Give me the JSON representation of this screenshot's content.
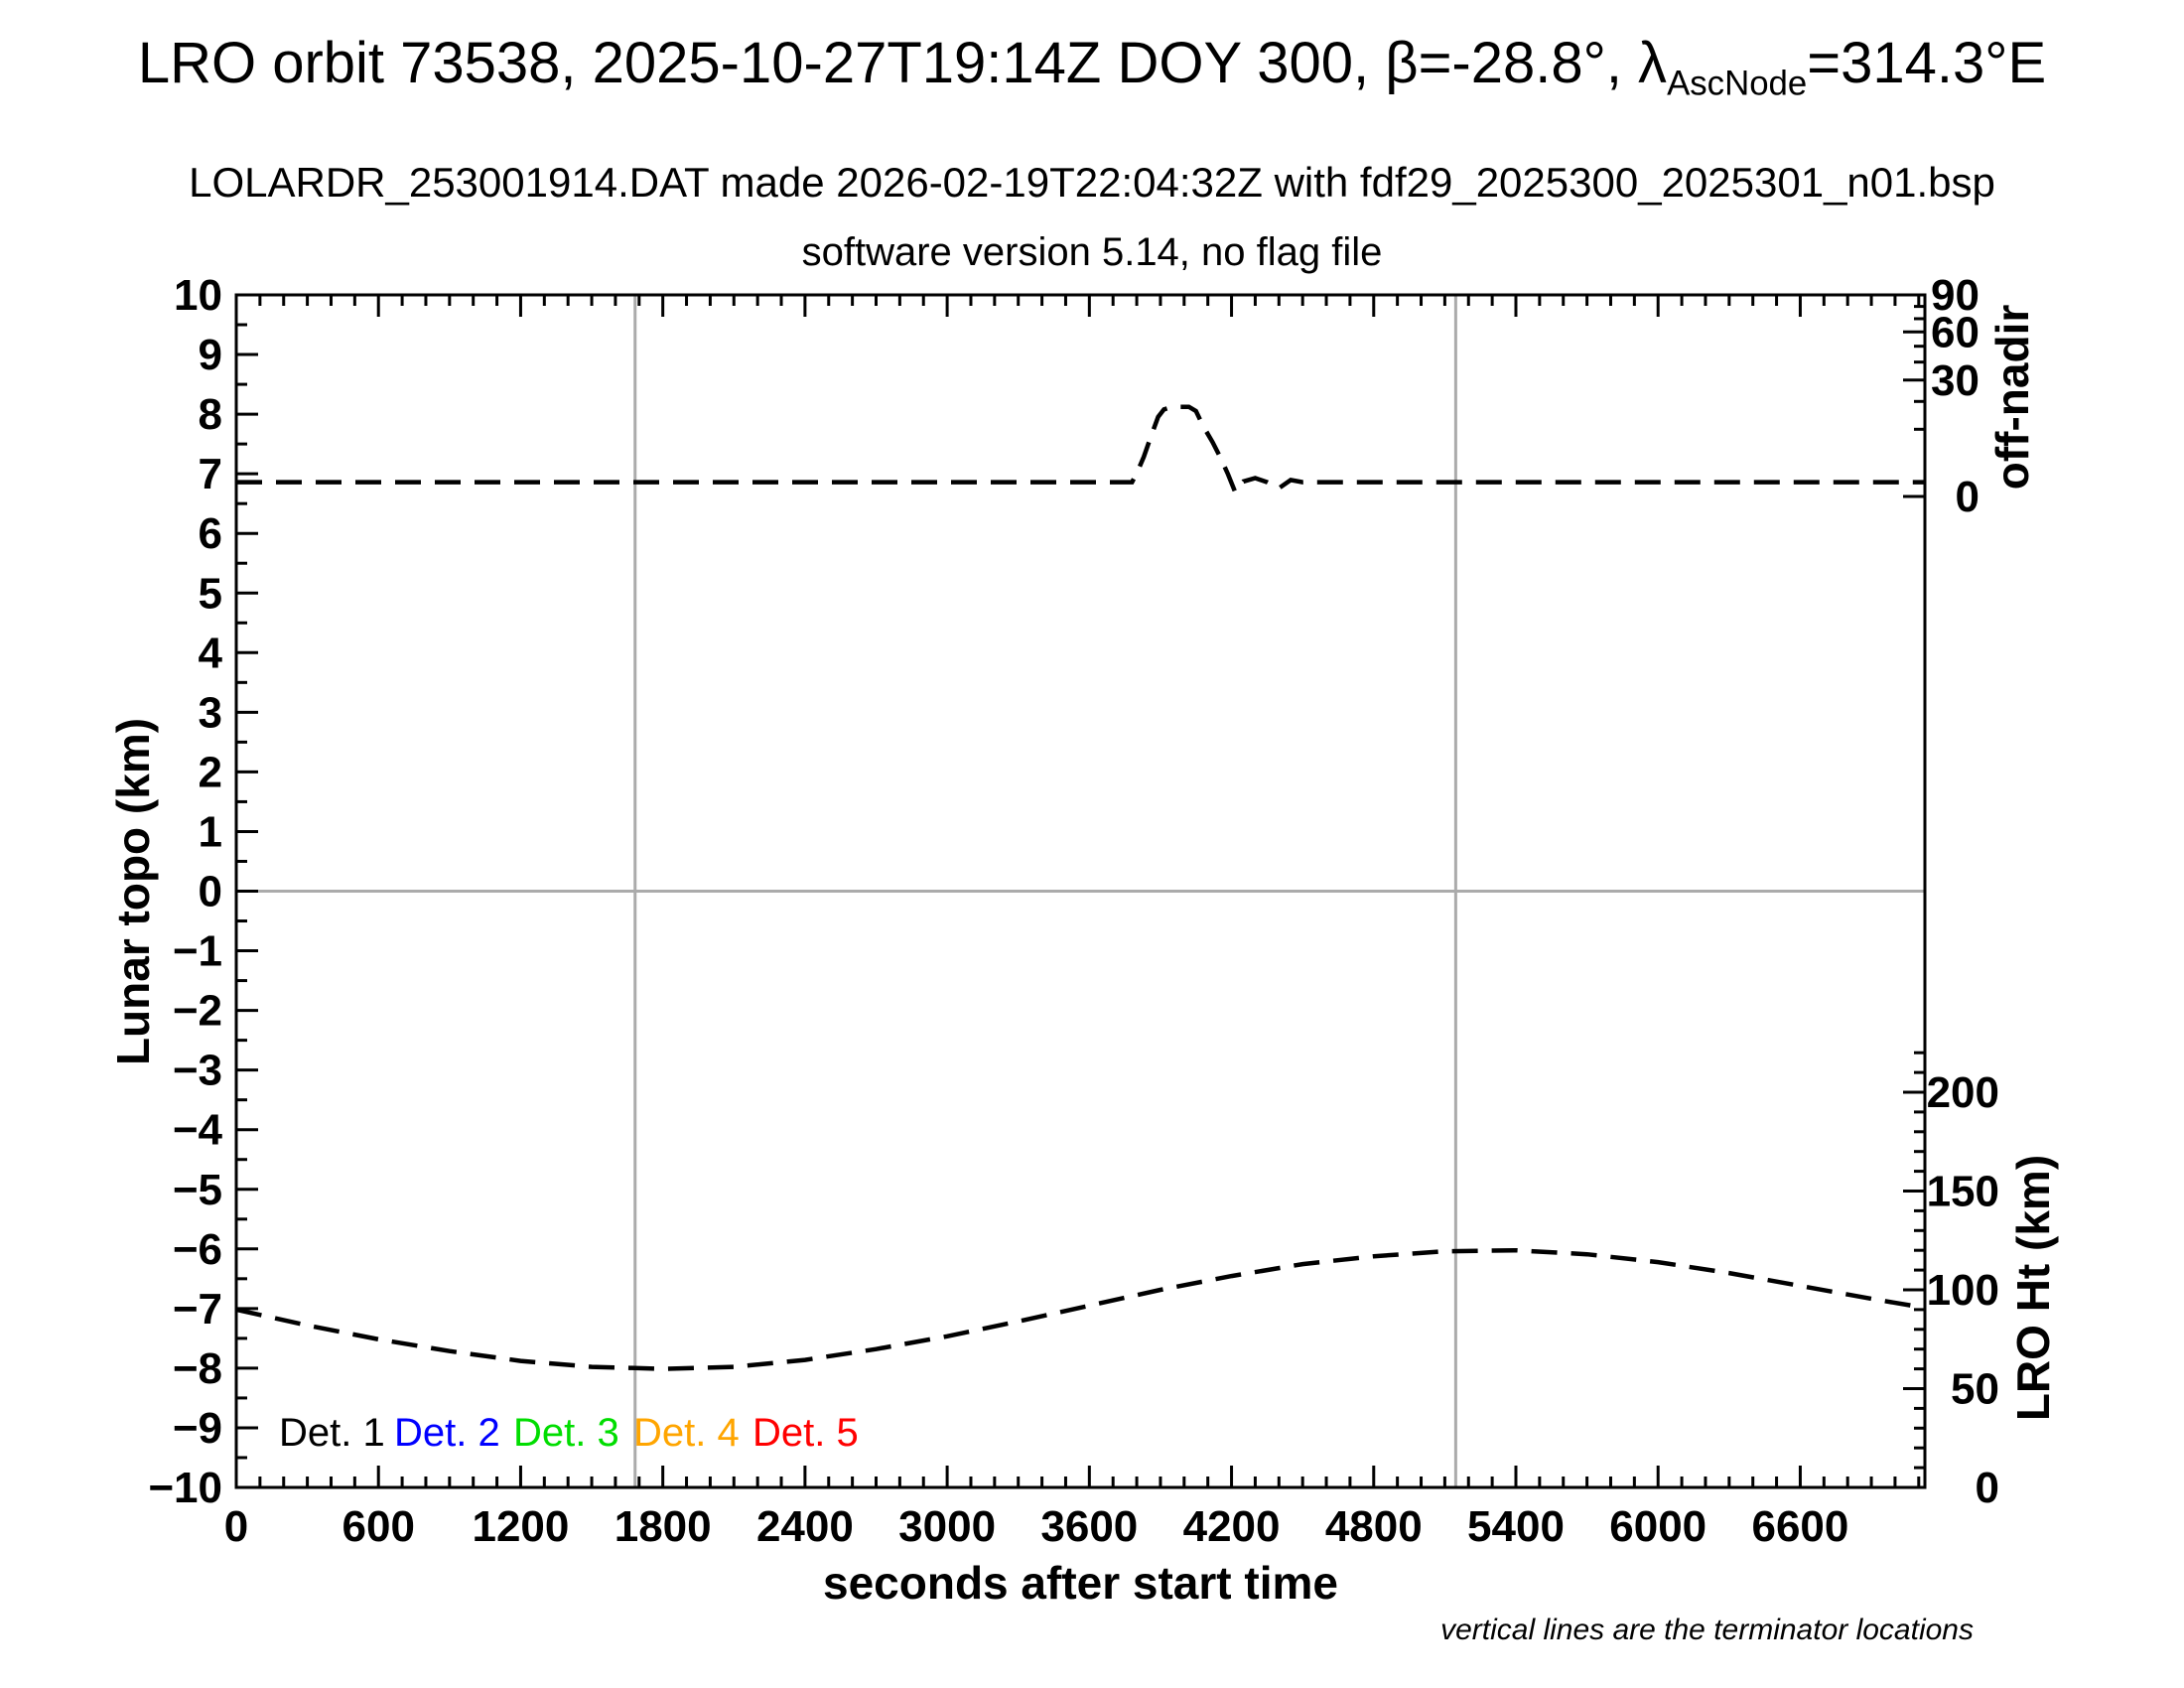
{
  "header": {
    "title_main": "LRO orbit 73538, 2025-10-27T19:14Z DOY 300, β=-28.8°, λ",
    "title_sub": "AscNode",
    "title_tail": "=314.3°E",
    "subtitle": "LOLARDR_253001914.DAT made 2026-02-19T22:04:32Z with fdf29_2025300_2025301_n01.bsp",
    "subtitle2": "software version 5.14, no flag file"
  },
  "footnote": {
    "text": "vertical lines are the terminator locations"
  },
  "legend": {
    "items": [
      {
        "label": "Det. 1",
        "color": "#000000"
      },
      {
        "label": "Det. 2",
        "color": "#0000ff"
      },
      {
        "label": "Det. 3",
        "color": "#00dd00"
      },
      {
        "label": "Det. 4",
        "color": "#ffa500"
      },
      {
        "label": "Det. 5",
        "color": "#ff0000"
      }
    ]
  },
  "chart_data": {
    "type": "line",
    "title": "LRO orbit 73538, 2025-10-27T19:14Z DOY 300, β=-28.8°, λAscNode=314.3°E",
    "xlabel": "seconds after start time",
    "x_range": [
      0,
      7126
    ],
    "x_major_ticks": [
      0,
      600,
      1200,
      1800,
      2400,
      3000,
      3600,
      4200,
      4800,
      5400,
      6000,
      6600
    ],
    "x_minor_step": 100,
    "left_axis": {
      "label": "Lunar topo (km)",
      "range": [
        -10,
        10
      ],
      "major_step": 1,
      "minor_step": 0.5
    },
    "right_axis_top": {
      "label": "off-nadir",
      "labeled_ticks": [
        90,
        60,
        30,
        0
      ],
      "minor_ticks": [
        10,
        20,
        40,
        50,
        70,
        80
      ],
      "scale": "sqrt",
      "units": "deg"
    },
    "right_axis_bottom": {
      "label": "LRO Ht (km)",
      "labeled_ticks": [
        200,
        150,
        100,
        50,
        0
      ],
      "minor_step": 10,
      "minor_max": 220,
      "units": "km"
    },
    "grid": {
      "horizontal_at_topo_km": 0,
      "terminator_lines_s": [
        1683,
        5146
      ],
      "color": "#ababab"
    },
    "line_style": {
      "color": "#000000",
      "dash": "26 14",
      "width": 4.5
    },
    "series": [
      {
        "name": "off-nadir angle",
        "axis": "right_top",
        "units": "deg",
        "style": "dashed",
        "points": [
          [
            0,
            0.45
          ],
          [
            400,
            0.45
          ],
          [
            800,
            0.45
          ],
          [
            1200,
            0.45
          ],
          [
            1600,
            0.45
          ],
          [
            2000,
            0.45
          ],
          [
            2400,
            0.45
          ],
          [
            2800,
            0.45
          ],
          [
            3200,
            0.45
          ],
          [
            3600,
            0.45
          ],
          [
            3780,
            0.45
          ],
          [
            3800,
            1.2
          ],
          [
            3830,
            3.5
          ],
          [
            3860,
            8
          ],
          [
            3890,
            14
          ],
          [
            3915,
            16.8
          ],
          [
            3950,
            17.8
          ],
          [
            4020,
            17.8
          ],
          [
            4050,
            16.2
          ],
          [
            4080,
            11
          ],
          [
            4120,
            6.5
          ],
          [
            4155,
            3.2
          ],
          [
            4185,
            1.1
          ],
          [
            4215,
            0.05
          ],
          [
            4250,
            0.5
          ],
          [
            4300,
            0.75
          ],
          [
            4350,
            0.45
          ],
          [
            4400,
            0.15
          ],
          [
            4450,
            0.6
          ],
          [
            4500,
            0.45
          ],
          [
            4800,
            0.45
          ],
          [
            5200,
            0.45
          ],
          [
            5600,
            0.45
          ],
          [
            6000,
            0.45
          ],
          [
            6400,
            0.45
          ],
          [
            6800,
            0.45
          ],
          [
            7120,
            0.45
          ]
        ]
      },
      {
        "name": "LRO height",
        "axis": "right_bottom",
        "units": "km",
        "style": "dashed",
        "points": [
          [
            0,
            90
          ],
          [
            300,
            82
          ],
          [
            600,
            75
          ],
          [
            900,
            69
          ],
          [
            1200,
            64
          ],
          [
            1500,
            61
          ],
          [
            1800,
            60
          ],
          [
            2100,
            61
          ],
          [
            2400,
            64.5
          ],
          [
            2700,
            70
          ],
          [
            3000,
            76.5
          ],
          [
            3300,
            84
          ],
          [
            3600,
            92
          ],
          [
            3900,
            100
          ],
          [
            4200,
            107
          ],
          [
            4500,
            113
          ],
          [
            4800,
            117
          ],
          [
            5100,
            119.5
          ],
          [
            5400,
            120
          ],
          [
            5700,
            118
          ],
          [
            6000,
            114
          ],
          [
            6300,
            108.5
          ],
          [
            6600,
            102
          ],
          [
            6900,
            95.5
          ],
          [
            7120,
            91
          ]
        ]
      }
    ]
  }
}
